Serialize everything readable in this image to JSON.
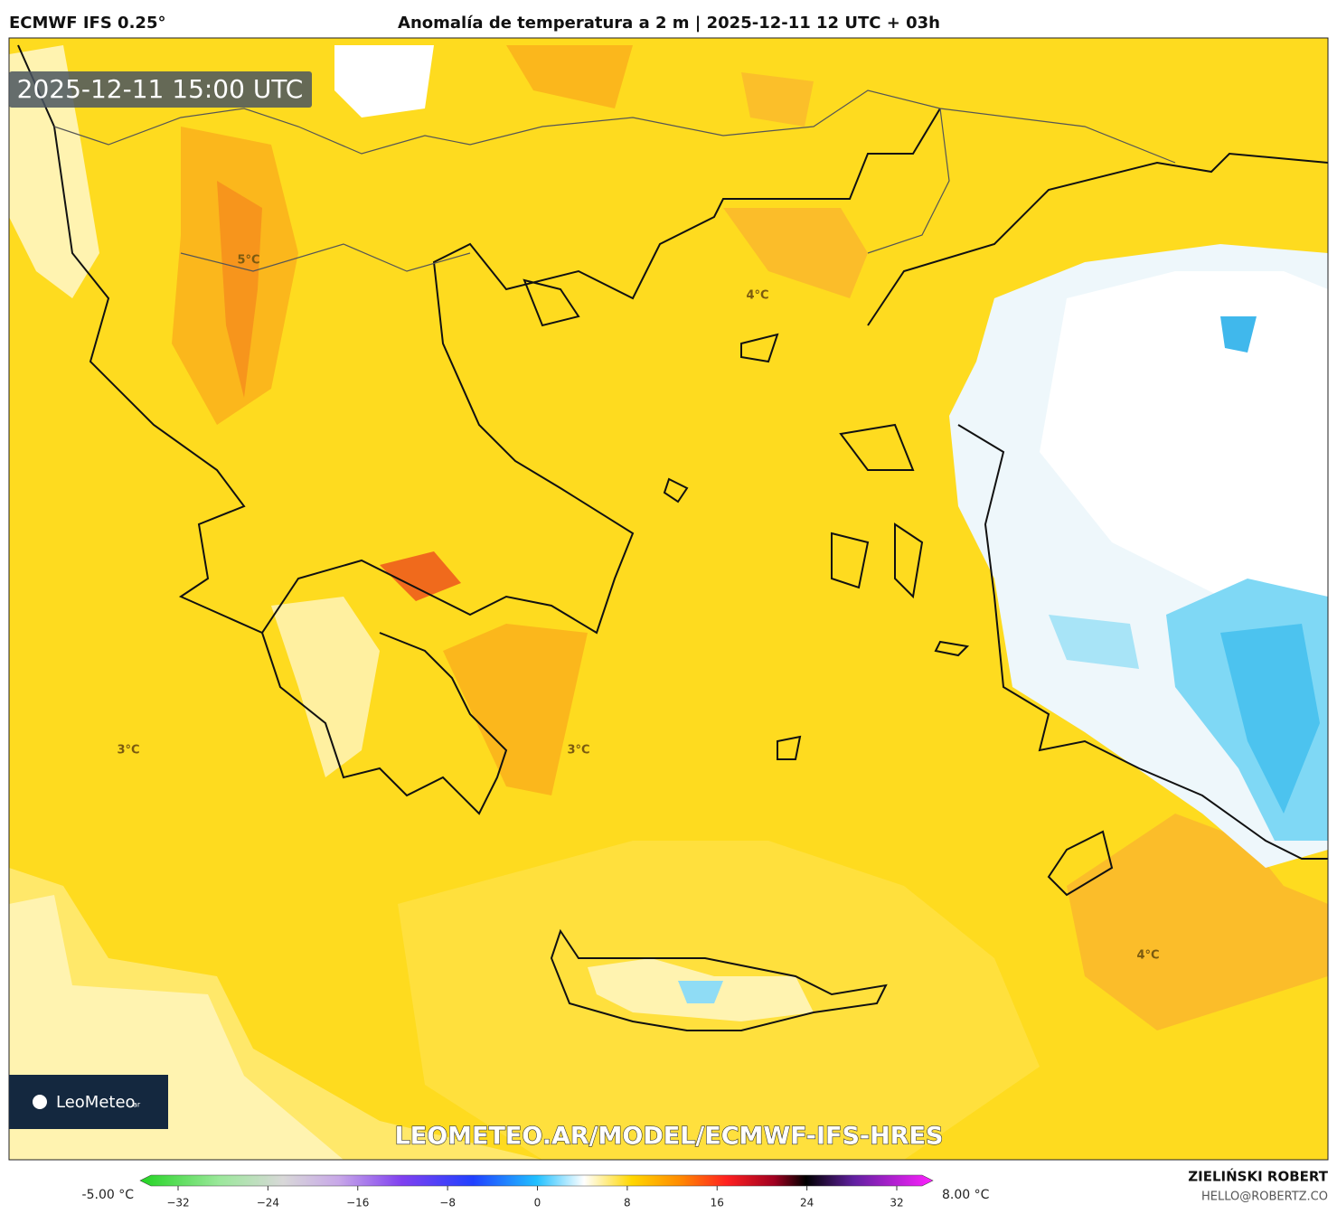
{
  "header": {
    "model": "ECMWF IFS 0.25°",
    "title": "Anomalía de temperatura a 2 m | 2025-12-11 12 UTC + 03h"
  },
  "timestamp": "2025-12-11 15:00 UTC",
  "map_labels": [
    {
      "text": "5°C"
    },
    {
      "text": "4°C"
    },
    {
      "text": "3°C"
    },
    {
      "text": "3°C"
    },
    {
      "text": "4°C"
    }
  ],
  "logo": {
    "name": "LeoMeteo",
    "suffix": "ar"
  },
  "watermark": "LEOMETEO.AR/MODEL/ECMWF-IFS-HRES",
  "colorbar": {
    "min_label": "-5.00 °C",
    "max_label": "8.00 °C",
    "ticks": [
      {
        "value": -32,
        "label": "−32"
      },
      {
        "value": -24,
        "label": "−24"
      },
      {
        "value": -16,
        "label": "−16"
      },
      {
        "value": -8,
        "label": "−8"
      },
      0,
      8,
      16,
      24,
      32
    ]
  },
  "author": {
    "name": "ZIELIŃSKI ROBERT",
    "email": "HELLO@ROBERTZ.CO"
  }
}
